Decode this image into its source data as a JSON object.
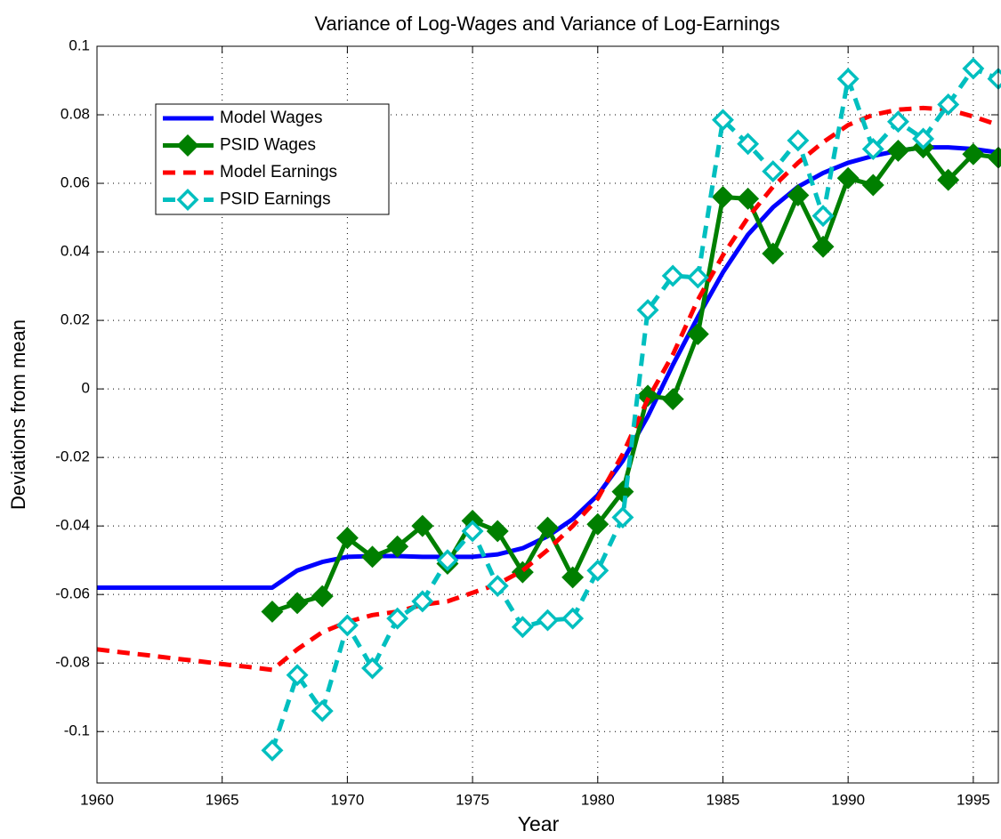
{
  "chart_data": {
    "type": "line",
    "title": "Variance of Log-Wages and Variance of Log-Earnings",
    "xlabel": "Year",
    "ylabel": "Deviations from mean",
    "x": [
      1960,
      1961,
      1962,
      1963,
      1964,
      1965,
      1966,
      1967,
      1968,
      1969,
      1970,
      1971,
      1972,
      1973,
      1974,
      1975,
      1976,
      1977,
      1978,
      1979,
      1980,
      1981,
      1982,
      1983,
      1984,
      1985,
      1986,
      1987,
      1988,
      1989,
      1990,
      1991,
      1992,
      1993,
      1994,
      1995,
      1996
    ],
    "series": [
      {
        "name": "Model Wages",
        "color": "#0000ff",
        "style": "solid",
        "marker": "none",
        "values": [
          -0.058,
          -0.058,
          -0.058,
          -0.058,
          -0.058,
          -0.058,
          -0.058,
          -0.058,
          -0.053,
          -0.0505,
          -0.049,
          -0.0488,
          -0.0488,
          -0.049,
          -0.049,
          -0.049,
          -0.0483,
          -0.0465,
          -0.043,
          -0.038,
          -0.031,
          -0.021,
          -0.008,
          0.007,
          0.021,
          0.034,
          0.045,
          0.053,
          0.059,
          0.063,
          0.066,
          0.068,
          0.0695,
          0.0705,
          0.0705,
          0.07,
          0.069
        ]
      },
      {
        "name": "PSID Wages",
        "color": "#007f00",
        "style": "solid",
        "marker": "diamond-filled",
        "values": [
          null,
          null,
          null,
          null,
          null,
          null,
          null,
          -0.065,
          -0.0625,
          -0.0605,
          -0.0435,
          -0.049,
          -0.046,
          -0.04,
          -0.051,
          -0.0385,
          -0.0415,
          -0.0535,
          -0.0405,
          -0.055,
          -0.0395,
          -0.03,
          -0.002,
          -0.003,
          0.016,
          0.056,
          0.0555,
          0.0395,
          0.0565,
          0.0415,
          0.0615,
          0.0595,
          0.0695,
          0.0705,
          0.061,
          0.0685,
          0.0675
        ]
      },
      {
        "name": "Model Earnings",
        "color": "#ff0000",
        "style": "dashed",
        "marker": "none",
        "values": [
          -0.076,
          -0.0769,
          -0.0777,
          -0.0786,
          -0.0794,
          -0.0803,
          -0.0811,
          -0.082,
          -0.076,
          -0.071,
          -0.068,
          -0.066,
          -0.065,
          -0.063,
          -0.062,
          -0.0595,
          -0.057,
          -0.053,
          -0.047,
          -0.04,
          -0.032,
          -0.019,
          -0.003,
          0.01,
          0.026,
          0.039,
          0.05,
          0.059,
          0.066,
          0.072,
          0.077,
          0.08,
          0.0815,
          0.082,
          0.0815,
          0.0795,
          0.077
        ]
      },
      {
        "name": "PSID Earnings",
        "color": "#00bfbf",
        "style": "dashed",
        "marker": "diamond-open",
        "values": [
          null,
          null,
          null,
          null,
          null,
          null,
          null,
          -0.1055,
          -0.0835,
          -0.094,
          -0.069,
          -0.0815,
          -0.067,
          -0.062,
          -0.05,
          -0.0415,
          -0.0575,
          -0.0695,
          -0.0675,
          -0.067,
          -0.053,
          -0.0375,
          0.023,
          0.033,
          0.0325,
          0.0785,
          0.0715,
          0.0635,
          0.0725,
          0.0505,
          0.0905,
          0.07,
          0.078,
          0.073,
          0.083,
          0.0935,
          0.0905
        ]
      }
    ],
    "xlim": [
      1960,
      1996
    ],
    "xticks": [
      1960,
      1965,
      1970,
      1975,
      1980,
      1985,
      1990,
      1995
    ],
    "ylim": [
      -0.115,
      0.1
    ],
    "yticks": [
      -0.1,
      -0.08,
      -0.06,
      -0.04,
      -0.02,
      0,
      0.02,
      0.04,
      0.06,
      0.08,
      0.1
    ],
    "grid": true,
    "legend": "upper left"
  }
}
